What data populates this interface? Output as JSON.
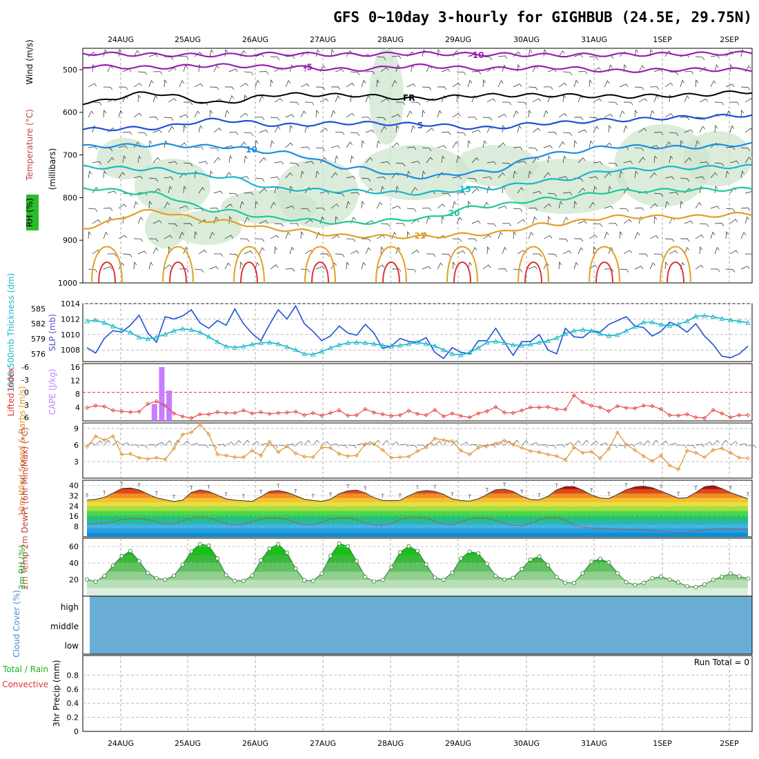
{
  "title": "GFS 0~10day 3-hourly for GIGHBUB (24.5E, 29.75N)",
  "date_labels": [
    "24AUG",
    "25AUG",
    "26AUG",
    "27AUG",
    "28AUG",
    "29AUG",
    "30AUG",
    "31AUG",
    "1SEP",
    "2SEP"
  ],
  "colors": {
    "purple": "#9a1fb5",
    "black": "#000000",
    "blue_dark": "#1f4fd8",
    "blue": "#1a8de0",
    "cyan": "#17b7c8",
    "teal": "#1ec89a",
    "orange": "#e0a020",
    "red": "#e03030",
    "rh_fill": "#cfe6cf",
    "cloud": "#6aaed6",
    "cape": "#c77dff",
    "wind_orange": "#e09030"
  },
  "chart_data": [
    {
      "id": "upper_air",
      "type": "line",
      "ylabel": "(millibars)",
      "side_label_wind": "Wind (m/s)",
      "side_label_temp": "Temperature (°C)",
      "side_label_rh": "RH (%)",
      "yticks": [
        500,
        600,
        700,
        800,
        900,
        1000
      ],
      "ylim": [
        450,
        1000
      ],
      "series": [
        {
          "color": "purple",
          "label": "-10",
          "values": [
            462,
            465,
            466,
            463,
            465,
            462,
            464,
            466,
            465,
            463,
            461
          ]
        },
        {
          "color": "purple",
          "label": "-5",
          "values": [
            492,
            495,
            490,
            494,
            500,
            491,
            498,
            495,
            503,
            500,
            500
          ]
        },
        {
          "color": "black",
          "label": "FR",
          "values": [
            578,
            555,
            578,
            558,
            560,
            568,
            560,
            560,
            563,
            560,
            552
          ]
        },
        {
          "color": "blue_dark",
          "label": "5",
          "values": [
            640,
            637,
            618,
            630,
            625,
            628,
            637,
            625,
            618,
            612,
            607
          ]
        },
        {
          "color": "blue",
          "label": "10",
          "values": [
            680,
            677,
            680,
            695,
            730,
            752,
            740,
            697,
            680,
            682,
            675
          ]
        },
        {
          "color": "cyan",
          "label": "15",
          "values": [
            728,
            733,
            750,
            780,
            785,
            790,
            778,
            760,
            735,
            730,
            727
          ]
        },
        {
          "color": "teal",
          "label": "20",
          "values": [
            778,
            790,
            830,
            850,
            860,
            850,
            820,
            803,
            785,
            782,
            780
          ]
        },
        {
          "color": "orange",
          "label": "25",
          "values": [
            870,
            832,
            855,
            875,
            890,
            892,
            885,
            862,
            845,
            845,
            838
          ]
        }
      ]
    },
    {
      "id": "slp_thickness",
      "type": "line",
      "ylabel_left": "1000-500mb Thickness (dm)",
      "ylabel_right": "SLP (mb)",
      "yticks_left": [
        576,
        579,
        582,
        585
      ],
      "yticks_right": [
        1008,
        1010,
        1012,
        1014
      ],
      "series": [
        {
          "name": "SLP",
          "axis": "right",
          "color": "blue_dark",
          "values": [
            1008.3,
            1007.6,
            1009.5,
            1010.5,
            1010.3,
            1011.2,
            1012.5,
            1010.2,
            1009.0,
            1012.3,
            1012.0,
            1012.4,
            1013.2,
            1011.5,
            1010.8,
            1011.8,
            1011.2,
            1013.3,
            1011.4,
            1010.1,
            1009.2,
            1011.3,
            1013.2,
            1012.0,
            1013.7,
            1011.4,
            1010.4,
            1009.2,
            1009.8,
            1011.1,
            1010.2,
            1009.9,
            1011.3,
            1010.2,
            1008.2,
            1008.5,
            1009.5,
            1009.1,
            1009.0,
            1009.6,
            1007.7,
            1006.9,
            1008.3,
            1007.7,
            1007.5,
            1009.2,
            1009.2,
            1010.8,
            1009.0,
            1007.3,
            1009.1,
            1009.1,
            1010.0,
            1008.0,
            1007.5,
            1010.8,
            1009.7,
            1009.6,
            1010.5,
            1010.3,
            1011.3,
            1011.8,
            1012.3,
            1011.1,
            1010.9,
            1009.8,
            1010.4,
            1011.6,
            1011.1,
            1010.3,
            1011.4,
            1009.8,
            1008.7,
            1007.2,
            1007.0,
            1007.5,
            1008.5
          ]
        },
        {
          "name": "Thickness",
          "axis": "left",
          "color": "cyan",
          "values": [
            582.5,
            582.7,
            582.2,
            581.5,
            580.8,
            580.3,
            579.3,
            579.0,
            579.3,
            579.9,
            580.6,
            581.0,
            580.8,
            580.3,
            579.4,
            578.4,
            577.5,
            577.3,
            577.5,
            577.9,
            578.2,
            578.3,
            578.0,
            577.4,
            576.8,
            576.0,
            575.9,
            576.5,
            577.2,
            577.8,
            578.2,
            578.3,
            578.2,
            578.0,
            577.7,
            577.5,
            577.7,
            578.0,
            578.3,
            578.0,
            577.6,
            576.8,
            576.0,
            575.8,
            576.3,
            577.2,
            578.3,
            578.5,
            578.2,
            577.8,
            577.7,
            577.9,
            578.3,
            578.6,
            579.2,
            580.0,
            580.6,
            580.8,
            580.6,
            580.0,
            579.6,
            579.8,
            580.6,
            581.4,
            582.3,
            582.3,
            581.8,
            581.6,
            581.9,
            582.5,
            583.5,
            583.6,
            583.4,
            583.0,
            582.7,
            582.5,
            582.2
          ]
        }
      ]
    },
    {
      "id": "cape_li",
      "type": "bar",
      "ylabel_left": "Lifted Index",
      "ylabel_right": "CAPE (J/kg)",
      "yticks_left": [
        "-6",
        "-3",
        "0",
        "3",
        "6"
      ],
      "yticks_right": [
        "4",
        "8",
        "12",
        "16"
      ],
      "cape_bars": [
        {
          "t": 0.107,
          "value": 5
        },
        {
          "t": 0.118,
          "value": 16
        },
        {
          "t": 0.129,
          "value": 9
        }
      ],
      "lifted_index": [
        3.6,
        3.1,
        3.3,
        4.2,
        4.4,
        4.6,
        4.5,
        2.7,
        2.1,
        3.1,
        4.9,
        5.6,
        6.0,
        5.1,
        5.1,
        4.6,
        4.8,
        4.8,
        4.2,
        4.9,
        4.6,
        5.0,
        4.8,
        4.7,
        4.5,
        5.3,
        4.8,
        5.4,
        4.8,
        4.2,
        5.4,
        5.3,
        3.9,
        4.7,
        5.1,
        5.5,
        5.3,
        4.3,
        5.0,
        5.3,
        4.1,
        5.6,
        4.9,
        5.5,
        5.8,
        4.9,
        4.4,
        3.4,
        4.7,
        4.8,
        4.2,
        3.5,
        3.5,
        3.4,
        3.9,
        4.0,
        0.7,
        2.3,
        3.1,
        3.5,
        4.4,
        3.2,
        3.6,
        3.7,
        3.1,
        3.2,
        3.9,
        5.3,
        5.4,
        5.1,
        5.8,
        6.0,
        4.1,
        4.9,
        5.8,
        5.3,
        5.3
      ]
    },
    {
      "id": "wind10m",
      "type": "line",
      "ylabel": "10m Wind Speed & Barbs (m/s)",
      "yticks": [
        "3",
        "6",
        "9"
      ],
      "ylim": [
        0,
        10
      ],
      "values": [
        5.7,
        7.6,
        6.9,
        7.6,
        4.3,
        4.4,
        3.7,
        3.5,
        3.7,
        3.4,
        5.4,
        7.9,
        8.3,
        9.7,
        8.0,
        4.3,
        4.1,
        3.8,
        3.8,
        5.0,
        4.1,
        6.6,
        4.7,
        5.8,
        4.5,
        3.9,
        3.8,
        5.6,
        5.5,
        4.4,
        4.0,
        4.1,
        6.2,
        6.2,
        5.1,
        3.7,
        3.8,
        3.9,
        4.9,
        5.6,
        7.2,
        6.9,
        6.7,
        5.0,
        4.3,
        5.5,
        5.9,
        6.3,
        6.8,
        6.1,
        5.5,
        4.9,
        4.7,
        4.3,
        4.0,
        3.3,
        5.6,
        4.6,
        4.8,
        3.6,
        5.3,
        8.3,
        6.1,
        5.1,
        4.0,
        3.1,
        4.1,
        2.3,
        1.6,
        5.0,
        4.6,
        3.8,
        5.1,
        5.4,
        4.6,
        3.7,
        3.6
      ]
    },
    {
      "id": "temp2m",
      "type": "area",
      "ylabel": "2m Temp 2m DewPt (6hr Min/Max) (°C)",
      "yticks": [
        "8",
        "16",
        "24",
        "32",
        "40"
      ],
      "ylim": [
        0,
        44
      ],
      "temperature": [
        28.5,
        29.2,
        30.7,
        34.0,
        37.5,
        38.0,
        36.5,
        33.3,
        30.3,
        28.8,
        27.5,
        28.5,
        34.5,
        36.5,
        35.3,
        32.5,
        29.5,
        28.5,
        28.0,
        27.6,
        31.3,
        35.3,
        36.0,
        34.6,
        32.0,
        29.2,
        28.3,
        27.6,
        29.2,
        33.5,
        35.8,
        36.3,
        34.2,
        30.4,
        28.3,
        28.1,
        28.4,
        32.0,
        35.0,
        36.0,
        35.3,
        33.0,
        29.5,
        28.2,
        27.8,
        29.5,
        33.0,
        36.6,
        37.0,
        35.3,
        31.5,
        29.0,
        28.7,
        31.5,
        36.5,
        39.0,
        39.0,
        36.2,
        32.5,
        30.2,
        29.8,
        33.0,
        36.6,
        38.8,
        39.4,
        38.2,
        35.5,
        32.8,
        30.0,
        30.5,
        34.5,
        38.9,
        39.9,
        37.5,
        34.3,
        32.0,
        29.5
      ],
      "dewpoint": [
        9.5,
        10.2,
        10.7,
        11.7,
        13.5,
        14.0,
        14.0,
        13.4,
        11.8,
        10.0,
        10.2,
        12.3,
        14.6,
        15.8,
        14.5,
        12.7,
        10.2,
        9.0,
        9.7,
        11.7,
        13.8,
        14.8,
        14.7,
        13.6,
        11.2,
        9.4,
        9.5,
        11.5,
        13.8,
        14.5,
        14.9,
        13.3,
        11.0,
        9.2,
        8.9,
        10.6,
        13.5,
        14.9,
        15.4,
        14.4,
        12.0,
        10.0,
        9.5,
        11.7,
        13.6,
        15.0,
        14.4,
        12.6,
        10.5,
        9.0,
        8.6,
        10.5,
        13.3,
        15.0,
        15.1,
        13.0,
        9.3,
        7.6,
        6.8,
        6.6,
        6.3,
        5.9,
        5.8,
        5.6,
        5.3,
        4.8,
        4.2,
        3.5,
        3.2,
        3.6,
        4.6,
        5.5,
        6.1,
        6.3,
        6.2,
        6.0,
        5.9
      ]
    },
    {
      "id": "rh2m",
      "type": "area",
      "ylabel": "2m RH (%)",
      "yticks": [
        "20",
        "40",
        "60"
      ],
      "ylim": [
        0,
        70
      ],
      "values": [
        20.0,
        17.5,
        24.5,
        37.0,
        48.3,
        54.5,
        42.4,
        28.0,
        21.6,
        20.0,
        24.6,
        38.1,
        54.0,
        62.8,
        61.1,
        45.6,
        25.4,
        18.5,
        18.5,
        24.8,
        43.3,
        57.4,
        62.8,
        52.5,
        33.3,
        19.1,
        18.5,
        27.3,
        48.7,
        63.6,
        60.2,
        42.4,
        23.2,
        17.9,
        19.6,
        35.0,
        53.1,
        60.3,
        54.7,
        38.4,
        22.3,
        19.8,
        28.2,
        45.6,
        53.8,
        51.6,
        39.1,
        24.4,
        20.2,
        22.1,
        32.8,
        44.3,
        48.0,
        37.5,
        23.1,
        16.3,
        15.9,
        27.6,
        41.7,
        45.1,
        40.8,
        27.8,
        17.0,
        13.7,
        16.0,
        21.6,
        23.7,
        20.0,
        16.6,
        12.0,
        10.9,
        14.2,
        19.8,
        23.5,
        27.4,
        24.0,
        21.2
      ]
    },
    {
      "id": "cloud",
      "type": "heatmap",
      "ylabel": "Cloud Cover (%)",
      "levels": [
        "high",
        "middle",
        "low"
      ]
    },
    {
      "id": "precip",
      "type": "bar",
      "ylabel_main": "3hr Precip (mm)",
      "legend_total": "Total / Rain",
      "legend_conv": "Convective",
      "yticks": [
        "0",
        "0.2",
        "0.4",
        "0.6",
        "0.8"
      ],
      "ylim": [
        0,
        1
      ],
      "run_total": "Run Total = 0",
      "values": []
    }
  ]
}
